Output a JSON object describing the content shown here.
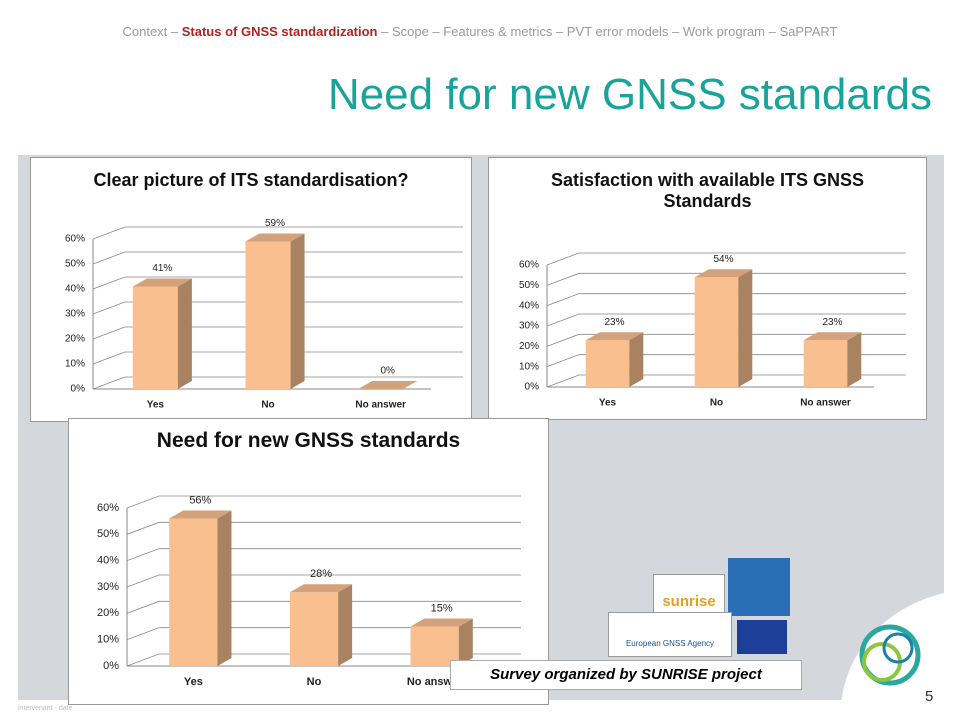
{
  "nav": [
    "Context – ",
    "Status of GNSS standardization",
    " – Scope – Features & metrics – PVT error models – Work program – SaPPART"
  ],
  "title": "Need for new GNSS standards",
  "chart_data": [
    {
      "type": "bar3d",
      "title": "Clear picture of ITS standardisation?",
      "categories": [
        "Yes",
        "No",
        "No answer"
      ],
      "values": [
        41,
        59,
        0
      ],
      "value_labels": [
        "41%",
        "59%",
        "0%"
      ],
      "color": "#f9bf8f",
      "ylim": [
        0,
        60
      ],
      "yticks": [
        {
          "value": 0,
          "label": "0%"
        },
        {
          "value": 10,
          "label": "10%"
        },
        {
          "value": 20,
          "label": "20%"
        },
        {
          "value": 30,
          "label": "30%"
        },
        {
          "value": 40,
          "label": "40%"
        },
        {
          "value": 50,
          "label": "50%"
        },
        {
          "value": 60,
          "label": "60%"
        }
      ],
      "grid": true
    },
    {
      "type": "bar3d",
      "title": "Satisfaction with available ITS GNSS Standards",
      "categories": [
        "Yes",
        "No",
        "No answer"
      ],
      "values": [
        23,
        54,
        23
      ],
      "value_labels": [
        "23%",
        "54%",
        "23%"
      ],
      "color": "#f9bf8f",
      "ylim": [
        0,
        60
      ],
      "yticks": [
        {
          "value": 0,
          "label": "0%"
        },
        {
          "value": 10,
          "label": "10%"
        },
        {
          "value": 20,
          "label": "20%"
        },
        {
          "value": 30,
          "label": "30%"
        },
        {
          "value": 40,
          "label": "40%"
        },
        {
          "value": 50,
          "label": "50%"
        },
        {
          "value": 60,
          "label": "60%"
        }
      ],
      "grid": true
    },
    {
      "type": "bar3d",
      "title": "Need for new GNSS standards",
      "categories": [
        "Yes",
        "No",
        "No answer"
      ],
      "values": [
        56,
        28,
        15
      ],
      "value_labels": [
        "56%",
        "28%",
        "15%"
      ],
      "color": "#f9bf8f",
      "ylim": [
        0,
        60
      ],
      "yticks": [
        {
          "value": 0,
          "label": "0%"
        },
        {
          "value": 10,
          "label": "10%"
        },
        {
          "value": 20,
          "label": "20%"
        },
        {
          "value": 30,
          "label": "30%"
        },
        {
          "value": 40,
          "label": "40%"
        },
        {
          "value": 50,
          "label": "50%"
        },
        {
          "value": 60,
          "label": "60%"
        }
      ],
      "grid": true
    }
  ],
  "logos": [
    "sunrise",
    "European GNSS Agency"
  ],
  "caption": "Survey organized by SUNRISE project",
  "page_number": "5",
  "footer": "intervenant - date"
}
